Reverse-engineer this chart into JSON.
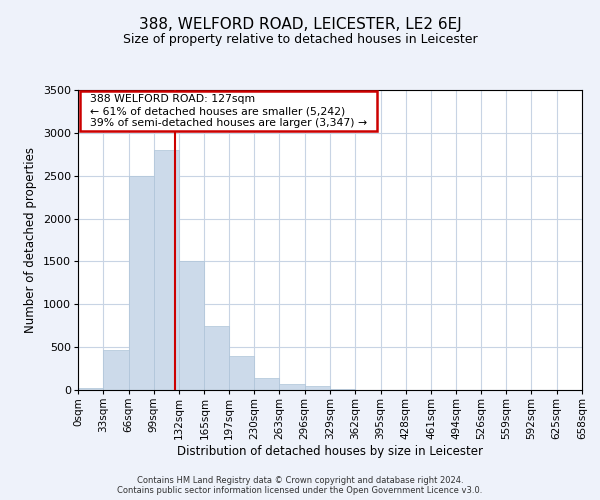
{
  "title": "388, WELFORD ROAD, LEICESTER, LE2 6EJ",
  "subtitle": "Size of property relative to detached houses in Leicester",
  "xlabel": "Distribution of detached houses by size in Leicester",
  "ylabel": "Number of detached properties",
  "bar_color": "#ccdaea",
  "bar_edgecolor": "#aec4d8",
  "grid_color": "#c8d4e4",
  "vline_x": 127,
  "vline_color": "#cc0000",
  "annotation_title": "388 WELFORD ROAD: 127sqm",
  "annotation_line1": "← 61% of detached houses are smaller (5,242)",
  "annotation_line2": "39% of semi-detached houses are larger (3,347) →",
  "bin_edges": [
    0,
    33,
    66,
    99,
    132,
    165,
    197,
    230,
    263,
    296,
    329,
    362,
    395,
    428,
    461,
    494,
    526,
    559,
    592,
    625,
    658
  ],
  "bin_counts": [
    25,
    470,
    2500,
    2800,
    1500,
    750,
    400,
    140,
    70,
    50,
    15,
    5,
    0,
    0,
    0,
    0,
    0,
    0,
    0,
    0
  ],
  "ylim": [
    0,
    3500
  ],
  "yticks": [
    0,
    500,
    1000,
    1500,
    2000,
    2500,
    3000,
    3500
  ],
  "footer_line1": "Contains HM Land Registry data © Crown copyright and database right 2024.",
  "footer_line2": "Contains public sector information licensed under the Open Government Licence v3.0.",
  "background_color": "#eef2fa",
  "plot_bg_color": "#ffffff"
}
